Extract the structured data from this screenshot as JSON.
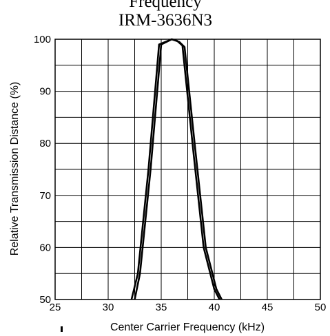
{
  "header": {
    "title_partial": "Frequency",
    "model": "IRM-3636N3"
  },
  "chart_data": {
    "type": "line",
    "xlabel": "Center Carrier Frequency  (kHz)",
    "ylabel": "Relative Transmission Distance (%)",
    "xlim": [
      25,
      50
    ],
    "ylim": [
      50,
      100
    ],
    "x_ticks": [
      "25",
      "30",
      "35",
      "40",
      "45",
      "50"
    ],
    "y_ticks": [
      "50",
      "60",
      "70",
      "80",
      "90",
      "100"
    ],
    "grid": true,
    "line_color": "#000000",
    "series": [
      {
        "x": [
          32.5,
          33.0,
          34.0,
          35.0,
          35.5,
          36.0,
          36.5,
          37.0,
          38.0,
          39.0,
          40.0,
          40.5
        ],
        "y": [
          50,
          55,
          75,
          99,
          99.5,
          100,
          99.7,
          98.8,
          79,
          60,
          52,
          50
        ]
      },
      {
        "x": [
          32.2,
          32.8,
          33.8,
          34.8,
          35.3,
          36.0,
          36.7,
          37.2,
          38.2,
          39.2,
          40.2,
          40.7
        ],
        "y": [
          50,
          55,
          75,
          99,
          99.4,
          100,
          99.5,
          98.5,
          79,
          60,
          52,
          50
        ]
      }
    ]
  }
}
